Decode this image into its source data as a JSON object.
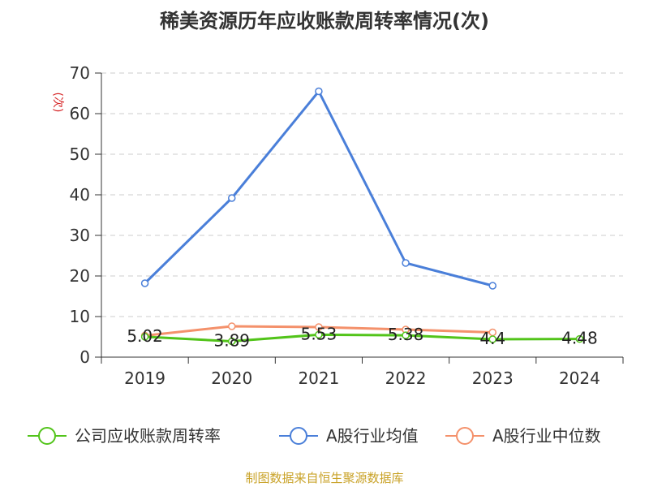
{
  "chart_data": {
    "type": "line",
    "title": "稀美资源历年应收账款周转率情况(次)",
    "ylabel": "(次)",
    "xlabel": "",
    "categories": [
      "2019",
      "2020",
      "2021",
      "2022",
      "2023",
      "2024"
    ],
    "ylim": [
      0,
      70
    ],
    "yticks": [
      0,
      10,
      20,
      30,
      40,
      50,
      60,
      70
    ],
    "grid": true,
    "legend_position": "bottom",
    "series": [
      {
        "name": "公司应收账款周转率",
        "color": "#52c41a",
        "values": [
          5.02,
          3.89,
          5.53,
          5.38,
          4.4,
          4.48
        ],
        "labels": [
          "5.02",
          "3.89",
          "5.53",
          "5.38",
          "4.4",
          "4.48"
        ]
      },
      {
        "name": "A股行业均值",
        "color": "#4a7fd9",
        "values": [
          18.2,
          39.2,
          65.5,
          23.2,
          17.6,
          null
        ]
      },
      {
        "name": "A股行业中位数",
        "color": "#f4916b",
        "values": [
          5.3,
          7.6,
          7.4,
          6.8,
          6.1,
          null
        ]
      }
    ]
  },
  "footer": {
    "source": "制图数据来自恒生聚源数据库"
  }
}
